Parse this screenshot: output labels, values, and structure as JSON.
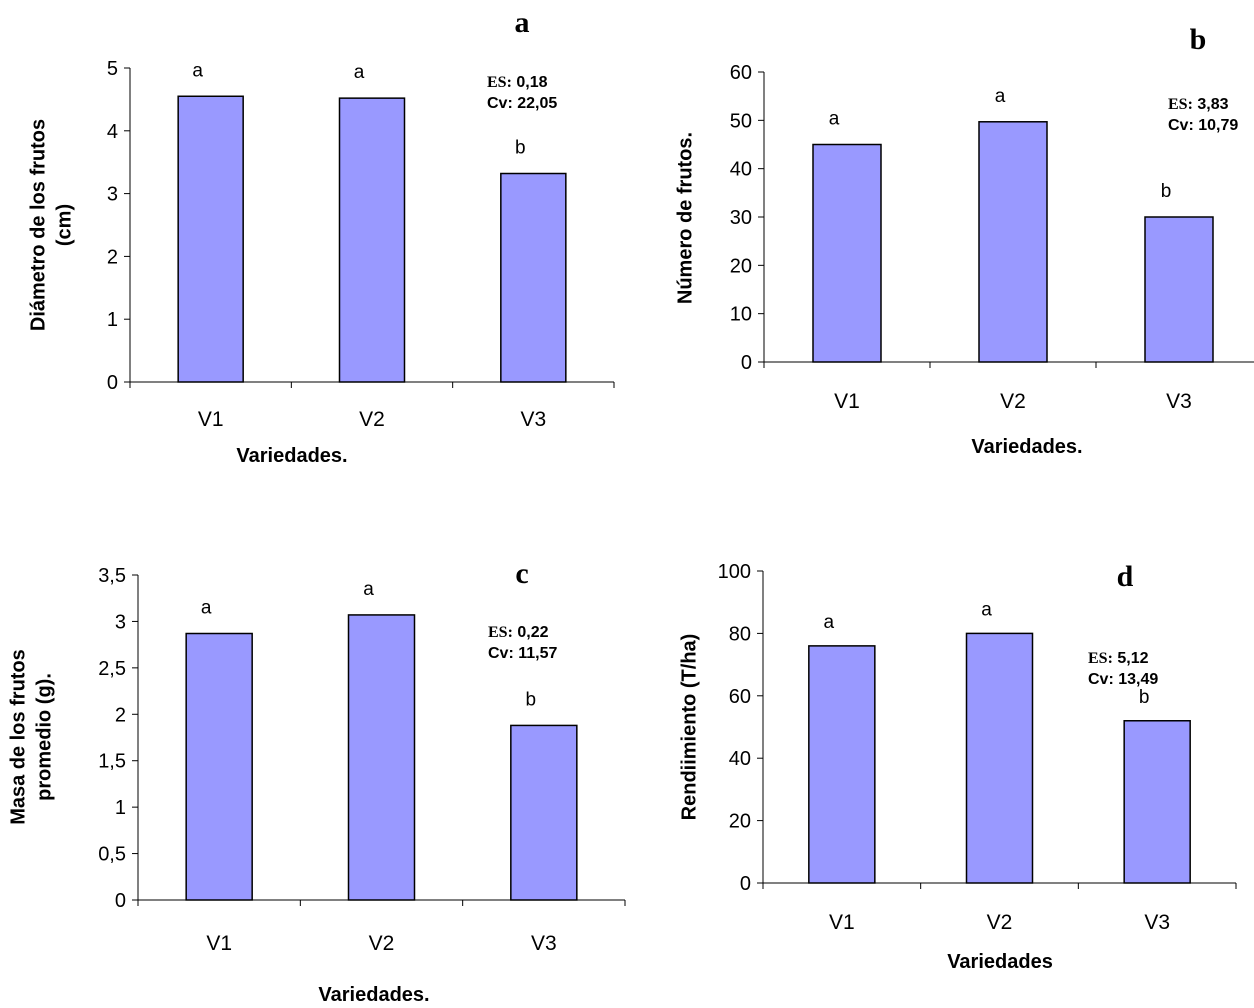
{
  "colors": {
    "bar_fill": "#9999ff",
    "bar_stroke": "#000000",
    "axis": "#000000"
  },
  "chart_data": [
    {
      "type": "bar",
      "panel_label": "a",
      "categories": [
        "V1",
        "V2",
        "V3"
      ],
      "values": [
        4.55,
        4.52,
        3.32
      ],
      "significance": [
        "a",
        "a",
        "b"
      ],
      "ylim": [
        0,
        5
      ],
      "yticks": [
        "0",
        "1",
        "2",
        "3",
        "4",
        "5"
      ],
      "ytick_values": [
        0,
        1,
        2,
        3,
        4,
        5
      ],
      "ylabel_lines": [
        "Diámetro de los frutos",
        "(cm)"
      ],
      "xlabel": "Variedades.",
      "stats": [
        {
          "k": "ES:",
          "v": " 0,18"
        },
        {
          "k": "Cv:",
          "v": " 22,05"
        }
      ],
      "grid": false,
      "legend": "none"
    },
    {
      "type": "bar",
      "panel_label": "b",
      "categories": [
        "V1",
        "V2",
        "V3"
      ],
      "values": [
        45,
        49.7,
        30
      ],
      "significance": [
        "a",
        "a",
        "b"
      ],
      "ylim": [
        0,
        60
      ],
      "yticks": [
        "0",
        "10",
        "20",
        "30",
        "40",
        "50",
        "60"
      ],
      "ytick_values": [
        0,
        10,
        20,
        30,
        40,
        50,
        60
      ],
      "ylabel_lines": [
        "Número de frutos."
      ],
      "xlabel": "Variedades.",
      "stats": [
        {
          "k": "ES:",
          "v": " 3,83"
        },
        {
          "k": "Cv:",
          "v": " 10,79"
        }
      ],
      "grid": false,
      "legend": "none"
    },
    {
      "type": "bar",
      "panel_label": "c",
      "categories": [
        "V1",
        "V2",
        "V3"
      ],
      "values": [
        2.87,
        3.07,
        1.88
      ],
      "significance": [
        "a",
        "a",
        "b"
      ],
      "ylim": [
        0,
        3.5
      ],
      "yticks": [
        "0",
        "0,5",
        "1",
        "1,5",
        "2",
        "2,5",
        "3",
        "3,5"
      ],
      "ytick_values": [
        0,
        0.5,
        1,
        1.5,
        2,
        2.5,
        3,
        3.5
      ],
      "ylabel_lines": [
        "Masa de los frutos",
        "promedio (g)."
      ],
      "xlabel": "Variedades.",
      "stats": [
        {
          "k": "ES:",
          "v": " 0,22"
        },
        {
          "k": "Cv:",
          "v": " 11,57"
        }
      ],
      "grid": false,
      "legend": "none"
    },
    {
      "type": "bar",
      "panel_label": "d",
      "categories": [
        "V1",
        "V2",
        "V3"
      ],
      "values": [
        76,
        80,
        52
      ],
      "significance": [
        "a",
        "a",
        "b"
      ],
      "ylim": [
        0,
        100
      ],
      "yticks": [
        "0",
        "20",
        "40",
        "60",
        "80",
        "100"
      ],
      "ytick_values": [
        0,
        20,
        40,
        60,
        80,
        100
      ],
      "ylabel_lines": [
        "Rendiimiento  (T/ha)"
      ],
      "xlabel": "Variedades",
      "stats": [
        {
          "k": "ES:",
          "v": " 5,12"
        },
        {
          "k": "Cv:",
          "v": " 13,49"
        }
      ],
      "grid": false,
      "legend": "none"
    }
  ]
}
